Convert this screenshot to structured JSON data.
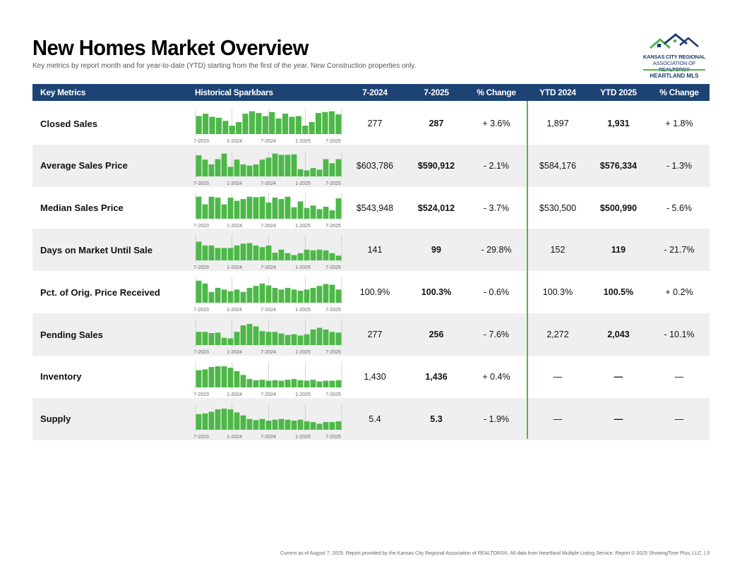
{
  "title": "New Homes Market Overview",
  "subtitle": "Key metrics by report month and for year-to-date (YTD) starting from the first of the year. New Construction properties only.",
  "logo": {
    "line1": "KANSAS CITY REGIONAL",
    "line2a": "ASSOCIATION OF ",
    "line2b": "REALTORS®",
    "line3": "HEARTLAND MLS"
  },
  "headers": {
    "metric": "Key Metrics",
    "spark": "Historical Sparkbars",
    "m1": "7-2024",
    "m2": "7-2025",
    "pct": "% Change",
    "ytd1": "YTD 2024",
    "ytd2": "YTD 2025",
    "ytdpct": "% Change"
  },
  "spark_labels": [
    "7-2023",
    "1-2024",
    "7-2024",
    "1-2025",
    "7-2025"
  ],
  "colors": {
    "header_bg": "#1d4375",
    "bar_green": "#4db848",
    "bar_light": "#8fd48a",
    "divider": "#4db848"
  },
  "rows": [
    {
      "metric": "Closed Sales",
      "m1": "277",
      "m2": "287",
      "pct": "+ 3.6%",
      "ytd1": "1,897",
      "ytd2": "1,931",
      "ytdpct": "+ 1.8%",
      "bars": [
        0.75,
        0.85,
        0.72,
        0.68,
        0.55,
        0.35,
        0.5,
        0.85,
        0.95,
        0.88,
        0.75,
        0.92,
        0.65,
        0.85,
        0.72,
        0.75,
        0.35,
        0.5,
        0.88,
        0.92,
        0.95,
        0.82
      ]
    },
    {
      "metric": "Average Sales Price",
      "m1": "$603,786",
      "m2": "$590,912",
      "pct": "- 2.1%",
      "ytd1": "$584,176",
      "ytd2": "$576,334",
      "ytdpct": "- 1.3%",
      "bars": [
        0.88,
        0.7,
        0.5,
        0.72,
        0.95,
        0.4,
        0.7,
        0.5,
        0.45,
        0.5,
        0.7,
        0.78,
        0.95,
        0.9,
        0.9,
        0.92,
        0.3,
        0.25,
        0.35,
        0.28,
        0.72,
        0.55,
        0.72
      ]
    },
    {
      "metric": "Median Sales Price",
      "m1": "$543,948",
      "m2": "$524,012",
      "pct": "- 3.7%",
      "ytd1": "$530,500",
      "ytd2": "$500,990",
      "ytdpct": "- 5.6%",
      "bars": [
        0.92,
        0.6,
        0.92,
        0.88,
        0.6,
        0.88,
        0.75,
        0.82,
        0.92,
        0.9,
        0.92,
        0.68,
        0.88,
        0.82,
        0.92,
        0.48,
        0.72,
        0.45,
        0.55,
        0.4,
        0.5,
        0.35,
        0.85
      ]
    },
    {
      "metric": "Days on Market Until Sale",
      "m1": "141",
      "m2": "99",
      "pct": "- 29.8%",
      "ytd1": "152",
      "ytd2": "119",
      "ytdpct": "- 21.7%",
      "bars": [
        0.78,
        0.62,
        0.62,
        0.52,
        0.52,
        0.52,
        0.62,
        0.7,
        0.72,
        0.62,
        0.55,
        0.62,
        0.32,
        0.45,
        0.3,
        0.22,
        0.3,
        0.45,
        0.42,
        0.45,
        0.42,
        0.3,
        0.2
      ]
    },
    {
      "metric": "Pct. of Orig. Price Received",
      "m1": "100.9%",
      "m2": "100.3%",
      "pct": "- 0.6%",
      "ytd1": "100.3%",
      "ytd2": "100.5%",
      "ytdpct": "+ 0.2%",
      "bars": [
        0.92,
        0.8,
        0.45,
        0.62,
        0.55,
        0.48,
        0.55,
        0.45,
        0.62,
        0.7,
        0.8,
        0.72,
        0.62,
        0.55,
        0.62,
        0.55,
        0.5,
        0.55,
        0.62,
        0.7,
        0.78,
        0.75,
        0.55
      ]
    },
    {
      "metric": "Pending Sales",
      "m1": "277",
      "m2": "256",
      "pct": "- 7.6%",
      "ytd1": "2,272",
      "ytd2": "2,043",
      "ytdpct": "- 10.1%",
      "bars": [
        0.55,
        0.55,
        0.5,
        0.52,
        0.3,
        0.28,
        0.55,
        0.82,
        0.88,
        0.78,
        0.58,
        0.55,
        0.55,
        0.48,
        0.42,
        0.45,
        0.4,
        0.45,
        0.65,
        0.72,
        0.65,
        0.55,
        0.52
      ]
    },
    {
      "metric": "Inventory",
      "m1": "1,430",
      "m2": "1,436",
      "pct": "+ 0.4%",
      "ytd1": "—",
      "ytd2": "—",
      "ytdpct": "—",
      "bars": [
        0.72,
        0.75,
        0.85,
        0.88,
        0.88,
        0.82,
        0.68,
        0.52,
        0.35,
        0.3,
        0.32,
        0.28,
        0.3,
        0.28,
        0.32,
        0.35,
        0.3,
        0.28,
        0.32,
        0.25,
        0.28,
        0.28,
        0.3
      ]
    },
    {
      "metric": "Supply",
      "m1": "5.4",
      "m2": "5.3",
      "pct": "- 1.9%",
      "ytd1": "—",
      "ytd2": "—",
      "ytdpct": "—",
      "bars": [
        0.65,
        0.68,
        0.75,
        0.85,
        0.88,
        0.85,
        0.72,
        0.6,
        0.45,
        0.4,
        0.45,
        0.38,
        0.42,
        0.45,
        0.42,
        0.38,
        0.42,
        0.35,
        0.32,
        0.25,
        0.32,
        0.32,
        0.35
      ]
    }
  ],
  "footer": "Current as of August 7, 2025. Report provided by the Kansas City Regional Association of REALTORS®. All data from Heartland Multiple Listing Service. Report © 2025 ShowingTime Plus, LLC.  |  3"
}
